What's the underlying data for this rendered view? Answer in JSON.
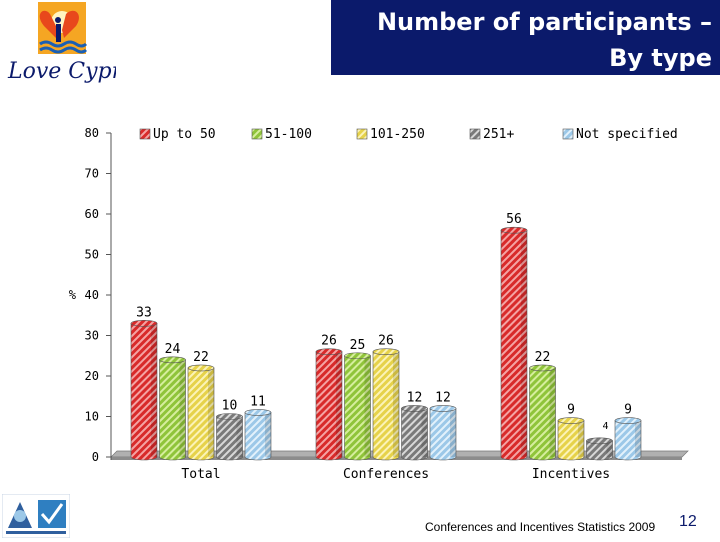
{
  "header": {
    "brand_text": "Love Cyprus",
    "title_line1": "Number of participants –",
    "title_line2": "By type"
  },
  "footer": {
    "source": "Conferences and Incentives Statistics 2009",
    "page_number": "12"
  },
  "colors": {
    "title_bg": "#0b1a6b",
    "series": [
      "#d82a2a",
      "#8fc43a",
      "#e6d24a",
      "#8a8a8a",
      "#9cc8e8"
    ]
  },
  "chart_data": {
    "type": "bar",
    "ylabel": "%",
    "ylim": [
      0,
      80
    ],
    "yticks": [
      0,
      10,
      20,
      30,
      40,
      50,
      60,
      70,
      80
    ],
    "grid": false,
    "legend_position": "top",
    "categories": [
      "Total",
      "Conferences",
      "Incentives"
    ],
    "series": [
      {
        "name": "Up to 50",
        "values": [
          33,
          26,
          56
        ]
      },
      {
        "name": "51-100",
        "values": [
          24,
          25,
          22
        ]
      },
      {
        "name": "101-250",
        "values": [
          22,
          26,
          9
        ]
      },
      {
        "name": "251+",
        "values": [
          10,
          12,
          4
        ]
      },
      {
        "name": "Not specified",
        "values": [
          11,
          12,
          9
        ]
      }
    ]
  }
}
